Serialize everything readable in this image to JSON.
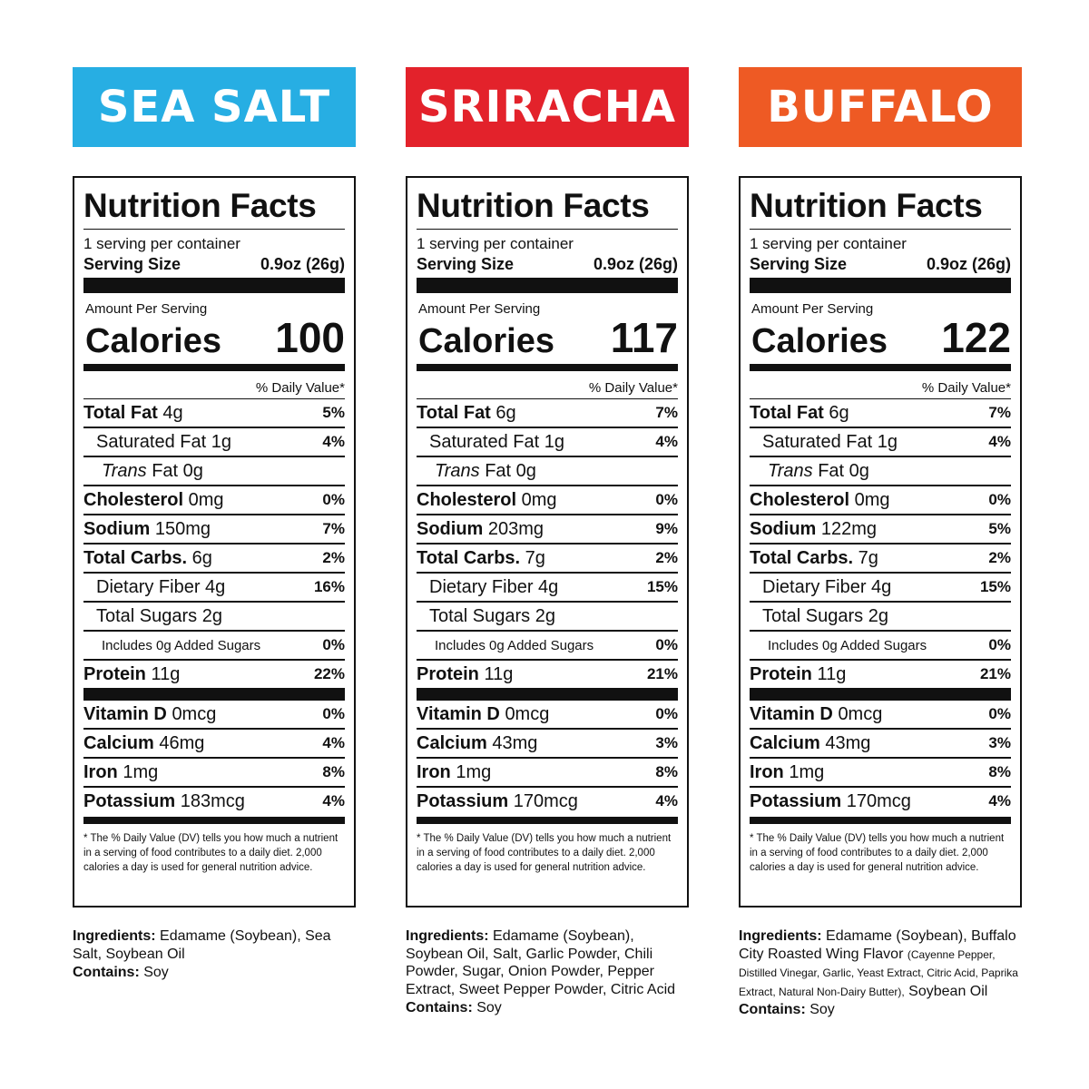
{
  "common": {
    "title": "Nutrition Facts",
    "servings": "1 serving per container",
    "serving_size_label": "Serving Size",
    "serving_size_value": "0.9oz (26g)",
    "amount_per_serving": "Amount Per Serving",
    "calories_label": "Calories",
    "dv_header": "% Daily Value*",
    "footnote": "* The % Daily Value (DV) tells you how much a nutrient in a serving of food contributes to a daily diet. 2,000 calories a day is used for general nutrition advice.",
    "ingredients_label": "Ingredients:",
    "contains_label": "Contains:",
    "trans": "Trans",
    "fat_word": "Fat"
  },
  "products": [
    {
      "name": "SEA SALT",
      "color": "#27aee3",
      "calories": "100",
      "total_fat": {
        "label": "Total Fat",
        "amount": "4g",
        "dv": "5%"
      },
      "sat_fat": {
        "label": "Saturated Fat",
        "amount": "1g",
        "dv": "4%"
      },
      "trans_fat": {
        "amount": "0g"
      },
      "cholesterol": {
        "label": "Cholesterol",
        "amount": "0mg",
        "dv": "0%"
      },
      "sodium": {
        "label": "Sodium",
        "amount": "150mg",
        "dv": "7%"
      },
      "carbs": {
        "label": "Total Carbs.",
        "amount": "6g",
        "dv": "2%"
      },
      "fiber": {
        "label": "Dietary Fiber",
        "amount": "4g",
        "dv": "16%"
      },
      "sugars": {
        "label": "Total Sugars",
        "amount": "2g"
      },
      "added_sugars": {
        "label": "Includes 0g Added Sugars",
        "dv": "0%"
      },
      "protein": {
        "label": "Protein",
        "amount": "11g",
        "dv": "22%"
      },
      "vit_d": {
        "label": "Vitamin D",
        "amount": "0mcg",
        "dv": "0%"
      },
      "calcium": {
        "label": "Calcium",
        "amount": "46mg",
        "dv": "4%"
      },
      "iron": {
        "label": "Iron",
        "amount": "1mg",
        "dv": "8%"
      },
      "potassium": {
        "label": "Potassium",
        "amount": "183mcg",
        "dv": "4%"
      },
      "ingredients": "Edamame (Soybean), Sea Salt, Soybean Oil",
      "ingredients_extra": "",
      "ingredients_tail": "",
      "contains": "Soy"
    },
    {
      "name": "SRIRACHA",
      "color": "#e3222b",
      "calories": "117",
      "total_fat": {
        "label": "Total Fat",
        "amount": "6g",
        "dv": "7%"
      },
      "sat_fat": {
        "label": "Saturated Fat",
        "amount": "1g",
        "dv": "4%"
      },
      "trans_fat": {
        "amount": "0g"
      },
      "cholesterol": {
        "label": "Cholesterol",
        "amount": "0mg",
        "dv": "0%"
      },
      "sodium": {
        "label": "Sodium",
        "amount": "203mg",
        "dv": "9%"
      },
      "carbs": {
        "label": "Total Carbs.",
        "amount": "7g",
        "dv": "2%"
      },
      "fiber": {
        "label": "Dietary Fiber",
        "amount": "4g",
        "dv": "15%"
      },
      "sugars": {
        "label": "Total Sugars",
        "amount": "2g"
      },
      "added_sugars": {
        "label": "Includes 0g Added Sugars",
        "dv": "0%"
      },
      "protein": {
        "label": "Protein",
        "amount": "11g",
        "dv": "21%"
      },
      "vit_d": {
        "label": "Vitamin D",
        "amount": "0mcg",
        "dv": "0%"
      },
      "calcium": {
        "label": "Calcium",
        "amount": "43mg",
        "dv": "3%"
      },
      "iron": {
        "label": "Iron",
        "amount": "1mg",
        "dv": "8%"
      },
      "potassium": {
        "label": "Potassium",
        "amount": "170mcg",
        "dv": "4%"
      },
      "ingredients": "Edamame (Soybean), Soybean Oil, Salt, Garlic Powder, Chili Powder, Sugar, Onion Powder, Pepper Extract, Sweet Pepper Powder, Citric Acid",
      "ingredients_extra": "",
      "ingredients_tail": "",
      "contains": "Soy"
    },
    {
      "name": "BUFFALO",
      "color": "#ee5a24",
      "calories": "122",
      "total_fat": {
        "label": "Total Fat",
        "amount": "6g",
        "dv": "7%"
      },
      "sat_fat": {
        "label": "Saturated Fat",
        "amount": "1g",
        "dv": "4%"
      },
      "trans_fat": {
        "amount": "0g"
      },
      "cholesterol": {
        "label": "Cholesterol",
        "amount": "0mg",
        "dv": "0%"
      },
      "sodium": {
        "label": "Sodium",
        "amount": "122mg",
        "dv": "5%"
      },
      "carbs": {
        "label": "Total Carbs.",
        "amount": "7g",
        "dv": "2%"
      },
      "fiber": {
        "label": "Dietary Fiber",
        "amount": "4g",
        "dv": "15%"
      },
      "sugars": {
        "label": "Total Sugars",
        "amount": "2g"
      },
      "added_sugars": {
        "label": "Includes 0g Added Sugars",
        "dv": "0%"
      },
      "protein": {
        "label": "Protein",
        "amount": "11g",
        "dv": "21%"
      },
      "vit_d": {
        "label": "Vitamin D",
        "amount": "0mcg",
        "dv": "0%"
      },
      "calcium": {
        "label": "Calcium",
        "amount": "43mg",
        "dv": "3%"
      },
      "iron": {
        "label": "Iron",
        "amount": "1mg",
        "dv": "8%"
      },
      "potassium": {
        "label": "Potassium",
        "amount": "170mcg",
        "dv": "4%"
      },
      "ingredients": "Edamame (Soybean), Buffalo City Roasted Wing Flavor",
      "ingredients_extra": "(Cayenne Pepper, Distilled Vinegar, Garlic, Yeast Extract, Citric Acid, Paprika Extract, Natural Non-Dairy Butter),",
      "ingredients_tail": "Soybean Oil",
      "contains": "Soy"
    }
  ]
}
